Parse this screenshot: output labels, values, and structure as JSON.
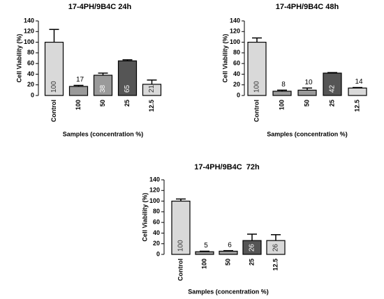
{
  "chart_data": [
    {
      "type": "bar",
      "title": "17-4PH/9B4C 24h",
      "xlabel": "Samples (concentration %)",
      "ylabel": "Cell Viability (%)",
      "categories": [
        "Control",
        "100",
        "50",
        "25",
        "12.5"
      ],
      "values": [
        100,
        17,
        38,
        65,
        21
      ],
      "errors": [
        24,
        2,
        4,
        2,
        8
      ],
      "colors": [
        "#d9d9d9",
        "#9a9a9a",
        "#9a9a9a",
        "#555555",
        "#d9d9d9"
      ],
      "ylim": [
        0,
        140
      ],
      "yticks": [
        0,
        20,
        40,
        60,
        80,
        100,
        120,
        140
      ]
    },
    {
      "type": "bar",
      "title": "17-4PH/9B4C 48h",
      "xlabel": "Samples (concentration %)",
      "ylabel": "Cell Viability (%)",
      "categories": [
        "Control",
        "100",
        "50",
        "25",
        "12.5"
      ],
      "values": [
        100,
        8,
        10,
        42,
        14
      ],
      "errors": [
        8,
        2,
        4,
        1,
        1
      ],
      "colors": [
        "#d9d9d9",
        "#9a9a9a",
        "#9a9a9a",
        "#555555",
        "#d9d9d9"
      ],
      "ylim": [
        0,
        140
      ],
      "yticks": [
        0,
        20,
        40,
        60,
        80,
        100,
        120,
        140
      ]
    },
    {
      "type": "bar",
      "title": "17-4PH/9B4C  72h",
      "xlabel": "Samples (concentration %)",
      "ylabel": "Cell Viability (%)",
      "categories": [
        "Control",
        "100",
        "50",
        "25",
        "12.5"
      ],
      "values": [
        100,
        5,
        6,
        26,
        26
      ],
      "errors": [
        4,
        1,
        1,
        12,
        11
      ],
      "colors": [
        "#d9d9d9",
        "#9a9a9a",
        "#9a9a9a",
        "#555555",
        "#d9d9d9"
      ],
      "ylim": [
        0,
        140
      ],
      "yticks": [
        0,
        20,
        40,
        60,
        80,
        100,
        120,
        140
      ]
    }
  ]
}
